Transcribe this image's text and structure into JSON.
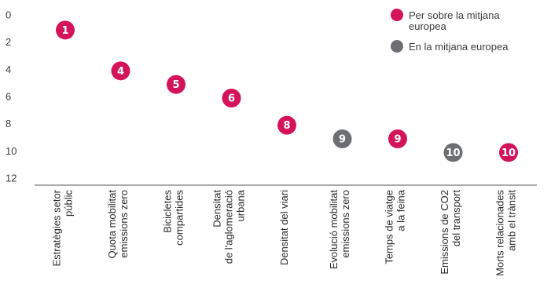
{
  "chart_data": {
    "type": "scatter",
    "ylim": [
      0,
      12
    ],
    "y_inverted": true,
    "y_ticks": [
      "0",
      "2",
      "4",
      "6",
      "8",
      "10",
      "12"
    ],
    "categories": [
      [
        "Estratègies setor",
        "públic"
      ],
      [
        "Quota mobilitat",
        "emissions zero"
      ],
      [
        "Bicicletes",
        "compartides"
      ],
      [
        "Densitat",
        "de l'aglomeració",
        "urbana"
      ],
      [
        "Densitat del viari"
      ],
      [
        "Evolució mobilitat",
        "emissions zero"
      ],
      [
        "Temps de viatge",
        "a la feina"
      ],
      [
        "Emissions de CO2",
        "del transport"
      ],
      [
        "Morts relacionades",
        "amb el trànsit"
      ]
    ],
    "series": [
      {
        "name": "Per sobre la mitjana europea",
        "legend_lines": [
          "Per sobre la mitjana",
          "europea"
        ],
        "color": "#d4145a"
      },
      {
        "name": "En la mitjana europea",
        "legend_lines": [
          "En la mitjana europea"
        ],
        "color": "#6d6e71"
      }
    ],
    "points": [
      {
        "category_index": 0,
        "value": 1,
        "label": "1",
        "series": 0
      },
      {
        "category_index": 1,
        "value": 4,
        "label": "4",
        "series": 0
      },
      {
        "category_index": 2,
        "value": 5,
        "label": "5",
        "series": 0
      },
      {
        "category_index": 3,
        "value": 6,
        "label": "6",
        "series": 0
      },
      {
        "category_index": 4,
        "value": 8,
        "label": "8",
        "series": 0
      },
      {
        "category_index": 5,
        "value": 9,
        "label": "9",
        "series": 1
      },
      {
        "category_index": 6,
        "value": 9,
        "label": "9",
        "series": 0
      },
      {
        "category_index": 7,
        "value": 10,
        "label": "10",
        "series": 1
      },
      {
        "category_index": 8,
        "value": 10,
        "label": "10",
        "series": 0
      }
    ],
    "legend_position": "top-right",
    "grid": false
  }
}
